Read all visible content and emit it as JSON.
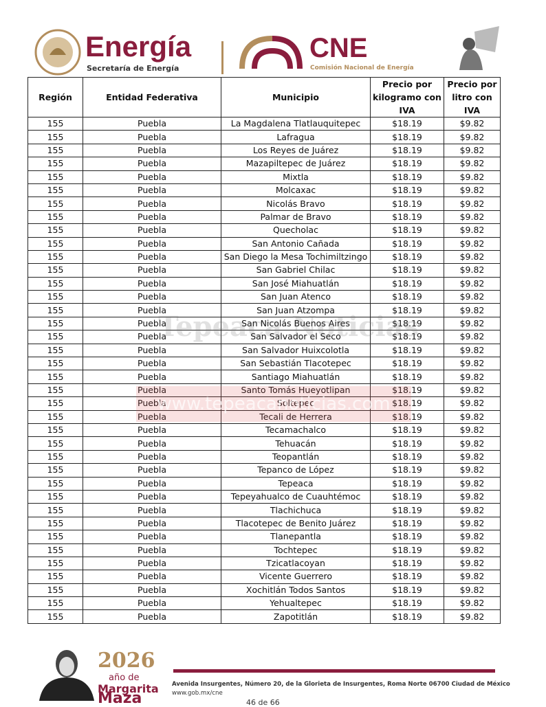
{
  "header": {
    "energia_title": "Energía",
    "energia_subtitle": "Secretaría de Energía",
    "cne_title": "CNE",
    "cne_subtitle": "Comisión Nacional de Energía"
  },
  "watermark": {
    "text": "Tepeaca Noticias",
    "url": "www.tepeacanoticias.com"
  },
  "table": {
    "columns": [
      "Región",
      "Entidad Federativa",
      "Municipio",
      "Precio por kilogramo con IVA",
      "Precio por litro con IVA"
    ],
    "rows": [
      [
        155,
        "Puebla",
        "La Magdalena Tlatlauquitepec",
        "$18.19",
        "$9.82"
      ],
      [
        155,
        "Puebla",
        "Lafragua",
        "$18.19",
        "$9.82"
      ],
      [
        155,
        "Puebla",
        "Los Reyes de Juárez",
        "$18.19",
        "$9.82"
      ],
      [
        155,
        "Puebla",
        "Mazapiltepec de Juárez",
        "$18.19",
        "$9.82"
      ],
      [
        155,
        "Puebla",
        "Mixtla",
        "$18.19",
        "$9.82"
      ],
      [
        155,
        "Puebla",
        "Molcaxac",
        "$18.19",
        "$9.82"
      ],
      [
        155,
        "Puebla",
        "Nicolás Bravo",
        "$18.19",
        "$9.82"
      ],
      [
        155,
        "Puebla",
        "Palmar de Bravo",
        "$18.19",
        "$9.82"
      ],
      [
        155,
        "Puebla",
        "Quecholac",
        "$18.19",
        "$9.82"
      ],
      [
        155,
        "Puebla",
        "San Antonio Cañada",
        "$18.19",
        "$9.82"
      ],
      [
        155,
        "Puebla",
        "San Diego la Mesa Tochimiltzingo",
        "$18.19",
        "$9.82"
      ],
      [
        155,
        "Puebla",
        "San Gabriel Chilac",
        "$18.19",
        "$9.82"
      ],
      [
        155,
        "Puebla",
        "San José Miahuatlán",
        "$18.19",
        "$9.82"
      ],
      [
        155,
        "Puebla",
        "San Juan Atenco",
        "$18.19",
        "$9.82"
      ],
      [
        155,
        "Puebla",
        "San Juan Atzompa",
        "$18.19",
        "$9.82"
      ],
      [
        155,
        "Puebla",
        "San Nicolás Buenos Aires",
        "$18.19",
        "$9.82"
      ],
      [
        155,
        "Puebla",
        "San Salvador el Seco",
        "$18.19",
        "$9.82"
      ],
      [
        155,
        "Puebla",
        "San Salvador Huixcolotla",
        "$18.19",
        "$9.82"
      ],
      [
        155,
        "Puebla",
        "San Sebastián Tlacotepec",
        "$18.19",
        "$9.82"
      ],
      [
        155,
        "Puebla",
        "Santiago Miahuatlán",
        "$18.19",
        "$9.82"
      ],
      [
        155,
        "Puebla",
        "Santo Tomás Hueyotlipan",
        "$18.19",
        "$9.82"
      ],
      [
        155,
        "Puebla",
        "Soltepec",
        "$18.19",
        "$9.82"
      ],
      [
        155,
        "Puebla",
        "Tecali de Herrera",
        "$18.19",
        "$9.82"
      ],
      [
        155,
        "Puebla",
        "Tecamachalco",
        "$18.19",
        "$9.82"
      ],
      [
        155,
        "Puebla",
        "Tehuacán",
        "$18.19",
        "$9.82"
      ],
      [
        155,
        "Puebla",
        "Teopantlán",
        "$18.19",
        "$9.82"
      ],
      [
        155,
        "Puebla",
        "Tepanco de López",
        "$18.19",
        "$9.82"
      ],
      [
        155,
        "Puebla",
        "Tepeaca",
        "$18.19",
        "$9.82"
      ],
      [
        155,
        "Puebla",
        "Tepeyahualco de Cuauhtémoc",
        "$18.19",
        "$9.82"
      ],
      [
        155,
        "Puebla",
        "Tlachichuca",
        "$18.19",
        "$9.82"
      ],
      [
        155,
        "Puebla",
        "Tlacotepec de Benito Juárez",
        "$18.19",
        "$9.82"
      ],
      [
        155,
        "Puebla",
        "Tlanepantla",
        "$18.19",
        "$9.82"
      ],
      [
        155,
        "Puebla",
        "Tochtepec",
        "$18.19",
        "$9.82"
      ],
      [
        155,
        "Puebla",
        "Tzicatlacoyan",
        "$18.19",
        "$9.82"
      ],
      [
        155,
        "Puebla",
        "Vicente Guerrero",
        "$18.19",
        "$9.82"
      ],
      [
        155,
        "Puebla",
        "Xochitlán Todos Santos",
        "$18.19",
        "$9.82"
      ],
      [
        155,
        "Puebla",
        "Yehualtepec",
        "$18.19",
        "$9.82"
      ],
      [
        155,
        "Puebla",
        "Zapotitlán",
        "$18.19",
        "$9.82"
      ]
    ]
  },
  "footer": {
    "year": "2026",
    "year_caption": "año de",
    "name_first": "Margarita",
    "name_last": "Maza",
    "address": "Avenida Insurgentes, Número 20, de la Glorieta de Insurgentes, Roma Norte 06700 Ciudad de México",
    "url": "www.gob.mx/cne",
    "page": "46 de 66"
  }
}
